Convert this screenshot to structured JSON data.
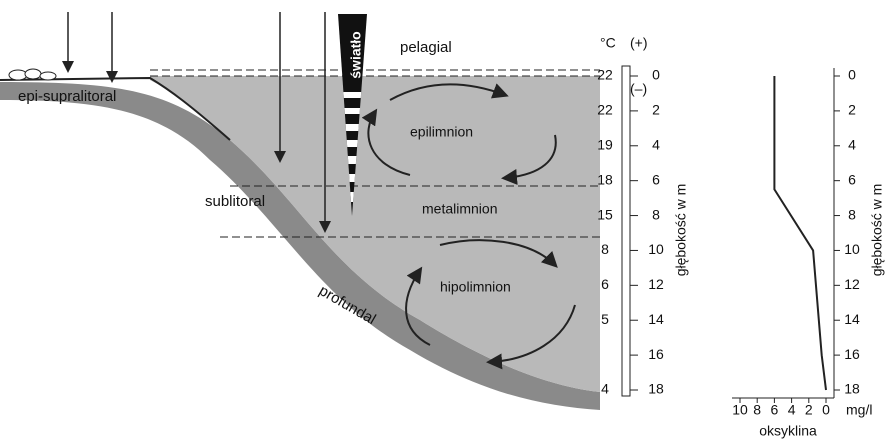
{
  "labels": {
    "light": "światło",
    "pelagial": "pelagial",
    "epi": "epi-supralitoral",
    "sublitoral": "sublitoral",
    "profundal": "profundal",
    "epilimnion": "epilimnion",
    "metalimnion": "metalimnion",
    "hipolimnion": "hipolimnion"
  },
  "temperature_scale": {
    "unit": "°C",
    "summer_sign": "(+)",
    "winter_sign": "(–)",
    "depths": [
      0,
      2,
      4,
      6,
      8,
      10,
      12,
      14,
      16,
      18
    ],
    "temperatures": [
      22,
      22,
      19,
      18,
      15,
      8,
      6,
      5,
      null,
      4
    ],
    "depth_label": "głębokość w m"
  },
  "oxygen_chart": {
    "title": "oksyklina",
    "x_unit": "mg/l",
    "xticks": [
      10,
      8,
      6,
      4,
      2,
      0
    ],
    "xlim": [
      10,
      0
    ],
    "depth_ticks": [
      0,
      2,
      4,
      6,
      8,
      10,
      12,
      14,
      16,
      18
    ],
    "ylim": [
      0,
      18
    ],
    "depth_label": "głębokość w m",
    "profile": {
      "depth": [
        0,
        6.5,
        10,
        16,
        18
      ],
      "oxygen": [
        6,
        6,
        1.5,
        0.5,
        0
      ]
    }
  }
}
